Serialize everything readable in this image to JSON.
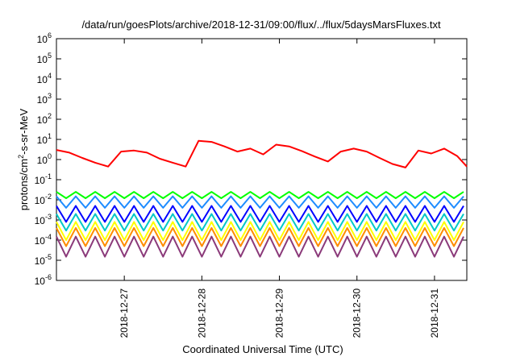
{
  "chart_data": {
    "type": "line",
    "title": "/data/run/goesPlots/archive/2018-12-31/09:00/flux/../flux/5daysMarsFluxes.txt",
    "xlabel": "Coordinated Universal Time (UTC)",
    "ylabel": "protons/cm2-s-sr-MeV",
    "ylabel_base": "protons/cm",
    "ylabel_sup": "2",
    "ylabel_rest": "-s-sr-MeV",
    "y_scale": "log",
    "ylim": [
      1e-06,
      1000000.0
    ],
    "y_ticks": [
      {
        "exp": "-6",
        "value": 1e-06
      },
      {
        "exp": "-5",
        "value": 1e-05
      },
      {
        "exp": "-4",
        "value": 0.0001
      },
      {
        "exp": "-3",
        "value": 0.001
      },
      {
        "exp": "-2",
        "value": 0.01
      },
      {
        "exp": "-1",
        "value": 0.1
      },
      {
        "exp": "0",
        "value": 1
      },
      {
        "exp": "1",
        "value": 10
      },
      {
        "exp": "2",
        "value": 100
      },
      {
        "exp": "3",
        "value": 1000
      },
      {
        "exp": "4",
        "value": 10000
      },
      {
        "exp": "5",
        "value": 100000
      },
      {
        "exp": "6",
        "value": 1000000
      }
    ],
    "xlim": [
      "2018-12-26T03:00",
      "2018-12-31T10:00"
    ],
    "x_ticks": [
      {
        "label": "2018-12-27",
        "value": "2018-12-27T00:00"
      },
      {
        "label": "2018-12-28",
        "value": "2018-12-28T00:00"
      },
      {
        "label": "2018-12-29",
        "value": "2018-12-29T00:00"
      },
      {
        "label": "2018-12-30",
        "value": "2018-12-30T00:00"
      },
      {
        "label": "2018-12-31",
        "value": "2018-12-31T00:00"
      }
    ],
    "grid": false,
    "legend": "none",
    "series": [
      {
        "color": "#ff0000",
        "pattern": "sawtooth",
        "x": [
          "2018-12-26T03:00",
          "2018-12-26T07:00",
          "2018-12-26T11:00",
          "2018-12-26T15:00",
          "2018-12-26T19:00",
          "2018-12-26T23:00",
          "2018-12-27T03:00",
          "2018-12-27T07:00",
          "2018-12-27T11:00",
          "2018-12-27T15:00",
          "2018-12-27T19:00",
          "2018-12-27T23:00",
          "2018-12-28T03:00",
          "2018-12-28T07:00",
          "2018-12-28T11:00",
          "2018-12-28T15:00",
          "2018-12-28T19:00",
          "2018-12-28T23:00",
          "2018-12-29T03:00",
          "2018-12-29T07:00",
          "2018-12-29T11:00",
          "2018-12-29T15:00",
          "2018-12-29T19:00",
          "2018-12-29T23:00",
          "2018-12-30T03:00",
          "2018-12-30T07:00",
          "2018-12-30T11:00",
          "2018-12-30T15:00",
          "2018-12-30T19:00",
          "2018-12-30T23:00",
          "2018-12-31T03:00",
          "2018-12-31T07:00",
          "2018-12-31T10:00"
        ],
        "y": [
          3.0,
          2.2,
          1.2,
          0.7,
          0.45,
          2.5,
          2.8,
          2.2,
          1.1,
          0.7,
          0.45,
          8.5,
          7.5,
          4.5,
          2.5,
          3.5,
          1.8,
          5.5,
          4.5,
          2.6,
          1.4,
          0.8,
          2.5,
          3.5,
          2.5,
          1.2,
          0.6,
          0.4,
          2.8,
          2.0,
          3.5,
          1.5,
          0.45
        ]
      },
      {
        "color": "#00ff00",
        "pattern": "sawtooth",
        "center": 0.025,
        "y": [
          0.025,
          0.012
        ]
      },
      {
        "color": "#1e8cff",
        "pattern": "sawtooth",
        "center": 0.012,
        "y": [
          0.015,
          0.004
        ]
      },
      {
        "color": "#0000ff",
        "pattern": "sawtooth",
        "center": 0.003,
        "y": [
          0.005,
          0.0008
        ]
      },
      {
        "color": "#00c8c8",
        "pattern": "sawtooth",
        "center": 0.0015,
        "y": [
          0.002,
          0.0003
        ]
      },
      {
        "color": "#ffff00",
        "pattern": "sawtooth",
        "center": 0.0004,
        "y": [
          0.0008,
          0.0001
        ]
      },
      {
        "color": "#ff8c00",
        "pattern": "sawtooth",
        "center": 0.0002,
        "y": [
          0.0004,
          5e-05
        ]
      },
      {
        "color": "#8b3a7a",
        "pattern": "sawtooth",
        "center": 5e-05,
        "y": [
          0.00015,
          1.5e-05
        ]
      }
    ]
  }
}
